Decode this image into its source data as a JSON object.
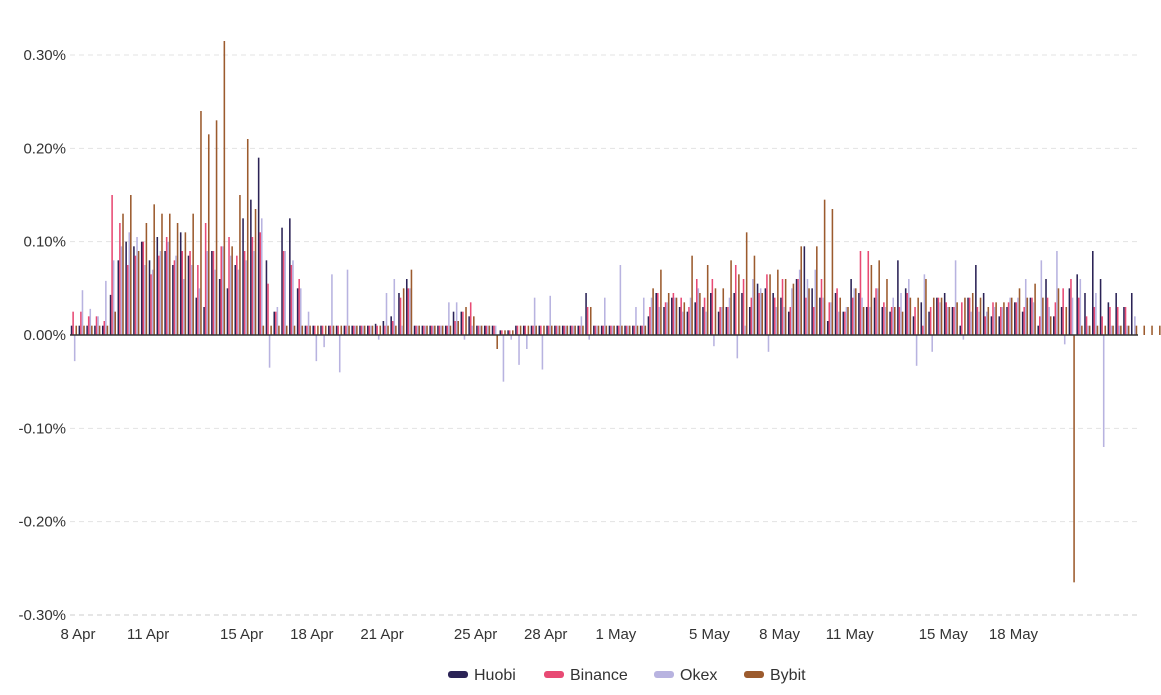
{
  "chart_data": {
    "type": "bar",
    "title": "",
    "xlabel": "",
    "ylabel": "",
    "ylim": [
      -0.3,
      0.3
    ],
    "grid": true,
    "legend_position": "bottom",
    "y_ticks": [
      "0.30%",
      "0.20%",
      "0.10%",
      "0.00%",
      "-0.10%",
      "-0.20%",
      "-0.30%"
    ],
    "y_tick_values": [
      0.3,
      0.2,
      0.1,
      0.0,
      -0.1,
      -0.2,
      -0.3
    ],
    "x_ticks": [
      "8 Apr",
      "11 Apr",
      "15 Apr",
      "18 Apr",
      "21 Apr",
      "25 Apr",
      "28 Apr",
      "1 May",
      "5 May",
      "8 May",
      "11 May",
      "15 May",
      "18 May"
    ],
    "x_tick_days": [
      0,
      3,
      7,
      10,
      13,
      17,
      20,
      23,
      27,
      30,
      33,
      37,
      40
    ],
    "periods_per_day": 3,
    "x_start": "8 Apr",
    "series": [
      {
        "name": "Huobi",
        "color": "#2b2356",
        "values": [
          0.01,
          0.01,
          0.01,
          0.01,
          0.01,
          0.043,
          0.08,
          0.1,
          0.095,
          0.1,
          0.08,
          0.105,
          0.09,
          0.075,
          0.11,
          0.085,
          0.04,
          0.03,
          0.09,
          0.06,
          0.05,
          0.075,
          0.125,
          0.145,
          0.19,
          0.08,
          0.025,
          0.115,
          0.125,
          0.05,
          0.01,
          0.01,
          0.01,
          0.01,
          0.01,
          0.01,
          0.01,
          0.01,
          0.01,
          0.012,
          0.015,
          0.02,
          0.045,
          0.06,
          0.01,
          0.01,
          0.01,
          0.01,
          0.01,
          0.025,
          0.025,
          0.02,
          0.01,
          0.01,
          0.01,
          0.005,
          0.005,
          0.01,
          0.01,
          0.01,
          0.01,
          0.01,
          0.01,
          0.01,
          0.01,
          0.01,
          0.045,
          0.01,
          0.01,
          0.01,
          0.01,
          0.01,
          0.01,
          0.01,
          0.02,
          0.045,
          0.03,
          0.04,
          0.03,
          0.025,
          0.035,
          0.03,
          0.045,
          0.025,
          0.03,
          0.045,
          0.045,
          0.03,
          0.055,
          0.05,
          0.045,
          0.04,
          0.025,
          0.06,
          0.095,
          0.05,
          0.04,
          0.015,
          0.045,
          0.025,
          0.06,
          0.045,
          0.03,
          0.04,
          0.03,
          0.025,
          0.08,
          0.05,
          0.02,
          0.035,
          0.025,
          0.04,
          0.045,
          0.03,
          0.01,
          0.04,
          0.075,
          0.045,
          0.02,
          0.02,
          0.03,
          0.035,
          0.025,
          0.04,
          0.01,
          0.06,
          0.02,
          0.03,
          0.05,
          0.065,
          0.045,
          0.09,
          0.06,
          0.035,
          0.045,
          0.03,
          0.045
        ]
      },
      {
        "name": "Binance",
        "color": "#e84a74",
        "values": [
          0.025,
          0.025,
          0.02,
          0.02,
          0.015,
          0.15,
          0.12,
          0.075,
          0.085,
          0.1,
          0.065,
          0.085,
          0.105,
          0.08,
          0.09,
          0.09,
          0.075,
          0.12,
          0.09,
          0.095,
          0.105,
          0.085,
          0.09,
          0.105,
          0.11,
          0.055,
          0.025,
          0.09,
          0.075,
          0.06,
          0.01,
          0.01,
          0.01,
          0.01,
          0.01,
          0.01,
          0.01,
          0.01,
          0.01,
          0.01,
          0.01,
          0.015,
          0.04,
          0.05,
          0.01,
          0.01,
          0.01,
          0.01,
          0.01,
          0.015,
          0.025,
          0.035,
          0.01,
          0.01,
          0.01,
          0.005,
          0.005,
          0.01,
          0.01,
          0.01,
          0.01,
          0.01,
          0.01,
          0.01,
          0.01,
          0.01,
          0.03,
          0.01,
          0.01,
          0.01,
          0.01,
          0.01,
          0.01,
          0.01,
          0.03,
          0.045,
          0.035,
          0.045,
          0.04,
          0.03,
          0.06,
          0.04,
          0.06,
          0.03,
          0.03,
          0.075,
          0.06,
          0.04,
          0.045,
          0.065,
          0.04,
          0.06,
          0.03,
          0.06,
          0.04,
          0.03,
          0.06,
          0.035,
          0.05,
          0.025,
          0.04,
          0.09,
          0.09,
          0.05,
          0.035,
          0.03,
          0.03,
          0.045,
          0.03,
          0.01,
          0.03,
          0.04,
          0.035,
          0.03,
          0.035,
          0.04,
          0.03,
          0.02,
          0.035,
          0.03,
          0.035,
          0.035,
          0.03,
          0.04,
          0.02,
          0.04,
          0.035,
          0.05,
          0.06,
          0.04,
          0.02,
          0.03,
          0.02,
          0.03,
          0.03,
          0.03
        ]
      },
      {
        "name": "Okex",
        "color": "#b8b3e0",
        "values": [
          -0.028,
          0.048,
          0.028,
          0.02,
          0.058,
          0.08,
          0.095,
          0.11,
          0.105,
          0.075,
          0.07,
          0.09,
          0.1,
          0.085,
          0.06,
          0.075,
          0.05,
          0.09,
          0.07,
          0.095,
          0.085,
          0.07,
          0.08,
          0.09,
          0.125,
          -0.035,
          0.03,
          0.09,
          0.08,
          0.05,
          0.025,
          -0.028,
          -0.013,
          0.065,
          -0.04,
          0.07,
          0.01,
          0.01,
          0.01,
          -0.005,
          0.045,
          0.06,
          0.01,
          0.05,
          0.01,
          0.01,
          0.01,
          0.01,
          0.035,
          0.035,
          -0.005,
          0.01,
          0.01,
          0.01,
          0.01,
          -0.05,
          -0.005,
          -0.032,
          -0.015,
          0.04,
          -0.037,
          0.042,
          0.01,
          0.01,
          0.01,
          0.02,
          -0.005,
          0.01,
          0.04,
          0.01,
          0.075,
          0.01,
          0.03,
          0.04,
          0.04,
          0.03,
          0.035,
          0.04,
          0.025,
          0.04,
          0.05,
          0.025,
          -0.012,
          0.03,
          0.04,
          -0.025,
          0.01,
          0.06,
          0.05,
          -0.018,
          0.03,
          0.03,
          0.05,
          0.07,
          0.06,
          0.07,
          0.04,
          0.035,
          0.025,
          0.03,
          0.05,
          0.04,
          0.03,
          0.05,
          0.03,
          0.04,
          0.045,
          0.06,
          -0.033,
          0.065,
          -0.018,
          0.035,
          0.03,
          0.08,
          -0.005,
          0.025,
          0.025,
          0.025,
          0.03,
          0.03,
          0.04,
          0.04,
          0.06,
          0.035,
          0.08,
          0.03,
          0.09,
          -0.01,
          0.04,
          0.06,
          0.01,
          0.045,
          -0.12,
          0.01,
          0.01,
          0.01,
          0.02
        ]
      },
      {
        "name": "Bybit",
        "color": "#9c5b2e",
        "values": [
          0.01,
          0.01,
          0.01,
          0.01,
          0.01,
          0.025,
          0.13,
          0.15,
          0.09,
          0.12,
          0.14,
          0.13,
          0.13,
          0.12,
          0.11,
          0.13,
          0.24,
          0.215,
          0.23,
          0.315,
          0.095,
          0.15,
          0.21,
          0.135,
          0.01,
          0.01,
          0.01,
          0.01,
          0.01,
          0.01,
          0.01,
          0.01,
          0.01,
          0.01,
          0.01,
          0.01,
          0.01,
          0.01,
          0.01,
          0.01,
          0.01,
          0.01,
          0.05,
          0.07,
          0.01,
          0.01,
          0.01,
          0.01,
          0.01,
          0.015,
          0.03,
          0.02,
          0.01,
          0.01,
          -0.015,
          0.005,
          0.005,
          0.01,
          0.01,
          0.01,
          0.01,
          0.01,
          0.01,
          0.01,
          0.01,
          0.01,
          0.03,
          0.01,
          0.01,
          0.01,
          0.01,
          0.01,
          0.01,
          0.01,
          0.05,
          0.07,
          0.045,
          0.04,
          0.035,
          0.085,
          0.045,
          0.075,
          0.05,
          0.05,
          0.08,
          0.065,
          0.11,
          0.085,
          0.045,
          0.065,
          0.07,
          0.06,
          0.055,
          0.095,
          0.05,
          0.095,
          0.145,
          0.135,
          0.04,
          0.03,
          0.05,
          0.03,
          0.075,
          0.08,
          0.06,
          0.03,
          0.025,
          0.04,
          0.04,
          0.06,
          0.04,
          0.04,
          0.03,
          0.035,
          0.04,
          0.045,
          0.04,
          0.03,
          0.035,
          0.035,
          0.04,
          0.05,
          0.04,
          0.055,
          0.04,
          0.02,
          0.05,
          0.03,
          -0.265,
          0.01,
          0.01,
          0.01,
          0.01,
          0.01,
          0.01,
          0.01,
          0.01,
          0.01,
          0.01,
          0.01,
          0.01
        ]
      }
    ]
  }
}
